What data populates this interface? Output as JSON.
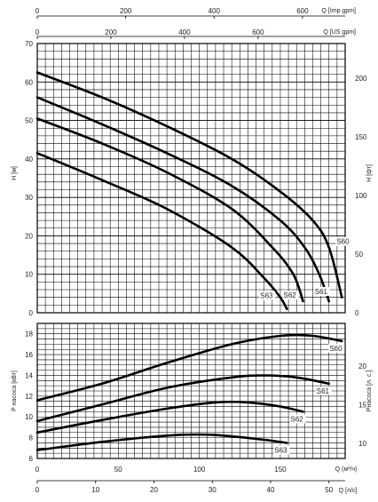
{
  "chart_data": [
    {
      "type": "line",
      "title": "",
      "xlabel": "Q [Imp gpm]",
      "xlabel2": "Q [US gpm]",
      "ylabel": "H [м]",
      "y2label": "H [фт]",
      "ylim": [
        0,
        70
      ],
      "y2lim": [
        0,
        210
      ],
      "x_ticks_imp": [
        "0",
        "200",
        "400",
        "600"
      ],
      "x_ticks_us": [
        "0",
        "200",
        "400",
        "600"
      ],
      "y_ticks": [
        "0",
        "10",
        "20",
        "30",
        "40",
        "50",
        "60",
        "70"
      ],
      "y2_ticks": [
        "0",
        "50",
        "100",
        "150",
        "200"
      ],
      "grid": true,
      "x_unit": "m³/h",
      "xlim": [
        0,
        190
      ],
      "series": [
        {
          "name": "S60",
          "x": [
            0,
            40,
            80,
            120,
            150,
            170,
            180,
            188
          ],
          "y": [
            62.5,
            56,
            48.5,
            40,
            31.5,
            24,
            17,
            4
          ]
        },
        {
          "name": "S61",
          "x": [
            0,
            40,
            80,
            120,
            150,
            165,
            174,
            180
          ],
          "y": [
            56,
            49,
            41.5,
            33,
            24,
            17,
            10,
            3
          ]
        },
        {
          "name": "S62",
          "x": [
            0,
            40,
            80,
            120,
            145,
            158,
            164
          ],
          "y": [
            50.5,
            44,
            36.5,
            27,
            17,
            10,
            3
          ]
        },
        {
          "name": "S63",
          "x": [
            0,
            40,
            80,
            120,
            140,
            150,
            154
          ],
          "y": [
            41.5,
            34.5,
            27,
            17,
            9,
            4,
            1
          ]
        }
      ]
    },
    {
      "type": "line",
      "title": "",
      "xlabel": "Q (м³/ч)",
      "xlabel2": "Q [л/с]",
      "ylabel": "P насоса [кВт]",
      "y2label": "Pнасоса [л. с.]",
      "ylim": [
        6,
        19
      ],
      "x_ticks_m3h": [
        "0",
        "50",
        "100",
        "150"
      ],
      "x_ticks_ls": [
        "0",
        "10",
        "20",
        "30",
        "40",
        "50"
      ],
      "y_ticks": [
        "6",
        "8",
        "10",
        "12",
        "14",
        "16",
        "18"
      ],
      "y2_ticks": [
        "10",
        "15",
        "20"
      ],
      "grid": true,
      "xlim": [
        0,
        190
      ],
      "series": [
        {
          "name": "S60",
          "x": [
            0,
            40,
            80,
            120,
            150,
            170,
            188
          ],
          "y": [
            11.6,
            13.2,
            15.2,
            17,
            17.8,
            17.8,
            17.3
          ]
        },
        {
          "name": "S61",
          "x": [
            0,
            40,
            80,
            120,
            140,
            160,
            180
          ],
          "y": [
            9.6,
            11.2,
            12.8,
            13.8,
            14,
            13.8,
            13.2
          ]
        },
        {
          "name": "S62",
          "x": [
            0,
            40,
            80,
            110,
            130,
            150,
            164
          ],
          "y": [
            8.5,
            9.7,
            10.8,
            11.4,
            11.4,
            11,
            10.5
          ]
        },
        {
          "name": "S63",
          "x": [
            0,
            40,
            80,
            100,
            115,
            140,
            154
          ],
          "y": [
            6.8,
            7.6,
            8.2,
            8.3,
            8.2,
            7.8,
            7.5
          ]
        }
      ]
    }
  ]
}
